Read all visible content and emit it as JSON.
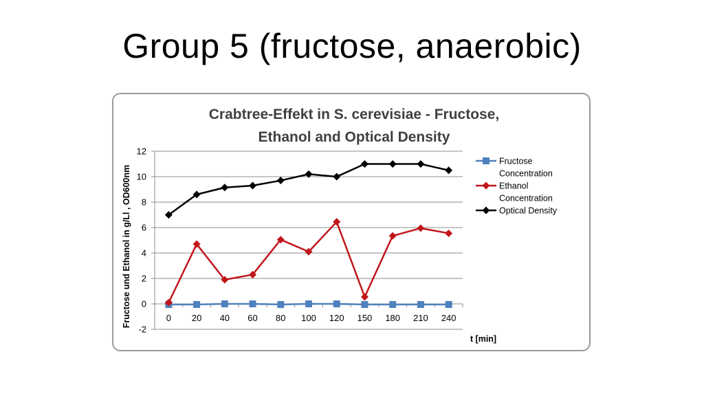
{
  "slide": {
    "title": "Group 5 (fructose, anaerobic)"
  },
  "chart_data": {
    "type": "line",
    "title_lines": [
      "Crabtree-Effekt in S. cerevisiae - Fructose,",
      "Ethanol and Optical Density"
    ],
    "xlabel": "t [min]",
    "ylabel": "Fructose und Ethanol in g/Ll , OD600nm",
    "categories": [
      "0",
      "20",
      "40",
      "60",
      "80",
      "100",
      "120",
      "150",
      "180",
      "210",
      "240"
    ],
    "ylim": [
      -2,
      12
    ],
    "yticks": [
      -2,
      0,
      2,
      4,
      6,
      8,
      10,
      12
    ],
    "grid": true,
    "legend_position": "right",
    "series": [
      {
        "name_lines": [
          "Fructose",
          "Concentration"
        ],
        "color": "#4f81bd",
        "marker": "square",
        "values": [
          -0.05,
          -0.05,
          0.0,
          0.0,
          -0.05,
          0.0,
          0.0,
          -0.05,
          -0.05,
          -0.05,
          -0.05
        ]
      },
      {
        "name_lines": [
          "Ethanol",
          "Concentration"
        ],
        "color": "#c0161b",
        "marker": "diamond",
        "values": [
          0.1,
          4.7,
          1.9,
          2.3,
          5.05,
          4.1,
          6.45,
          0.55,
          5.35,
          5.95,
          5.55
        ]
      },
      {
        "name_lines": [
          "Optical Density"
        ],
        "color": "#000000",
        "marker": "diamond",
        "values": [
          7.0,
          8.6,
          9.15,
          9.3,
          9.7,
          10.2,
          10.0,
          11.0,
          11.0,
          11.0,
          10.5
        ]
      }
    ]
  }
}
